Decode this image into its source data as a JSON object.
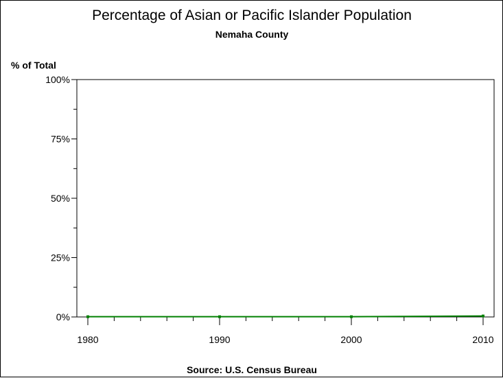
{
  "chart_data": {
    "type": "line",
    "title": "Percentage of Asian or Pacific Islander Population",
    "subtitle": "Nemaha County",
    "ylabel": "% of Total",
    "footnote": "Source: U.S. Census Bureau",
    "x": [
      1980,
      1990,
      2000,
      2010
    ],
    "xticks": [
      "1980",
      "1990",
      "2000",
      "2010"
    ],
    "xlim": [
      1980,
      2010
    ],
    "yticks": [
      "0%",
      "25%",
      "50%",
      "75%",
      "100%"
    ],
    "ylim": [
      0,
      100
    ],
    "series": [
      {
        "values": [
          0.1,
          0.1,
          0.1,
          0.4
        ],
        "color": "#008000"
      }
    ],
    "grid": false
  }
}
